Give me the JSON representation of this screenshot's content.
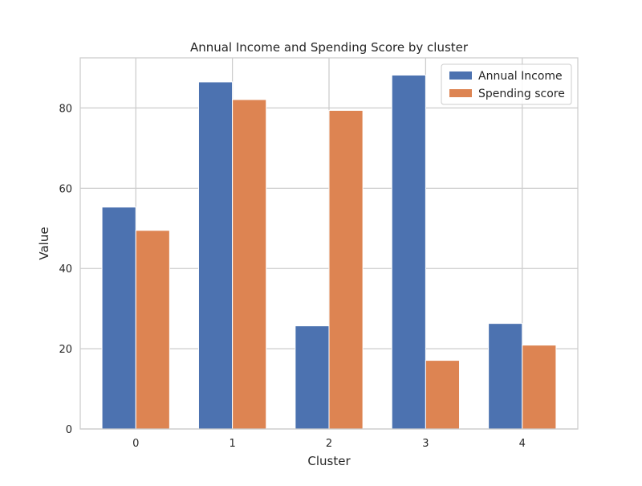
{
  "chart_data": {
    "type": "bar",
    "title": "Annual Income and Spending Score by cluster",
    "xlabel": "Cluster",
    "ylabel": "Value",
    "categories": [
      "0",
      "1",
      "2",
      "3",
      "4"
    ],
    "series": [
      {
        "name": "Annual Income",
        "values": [
          55.3,
          86.5,
          25.7,
          88.2,
          26.3
        ],
        "color": "#4c72b0"
      },
      {
        "name": "Spending score",
        "values": [
          49.5,
          82.1,
          79.4,
          17.1,
          20.9
        ],
        "color": "#dd8452"
      }
    ],
    "ylim": [
      0,
      92.5
    ],
    "yticks": [
      0,
      20,
      40,
      60,
      80
    ],
    "grid": true,
    "legend_position": "top-right"
  }
}
